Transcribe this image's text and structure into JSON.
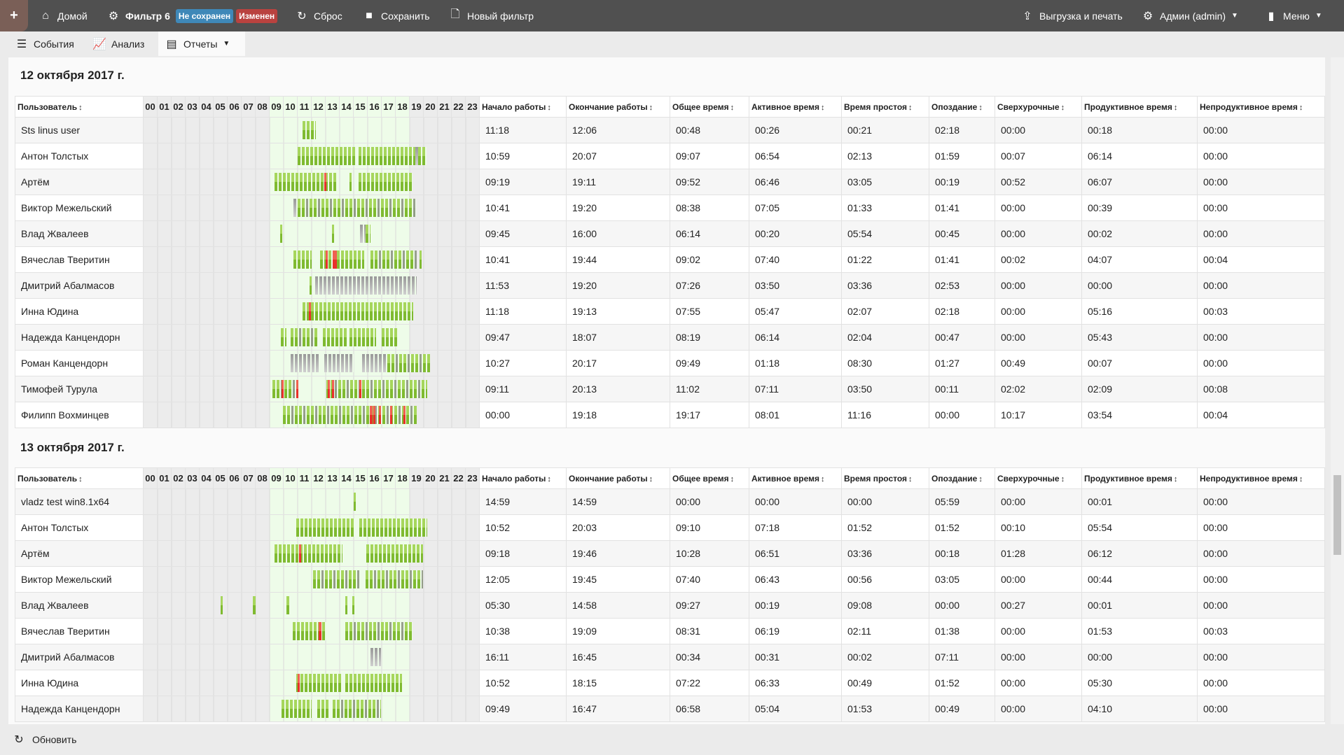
{
  "topbar": {
    "add": "+",
    "home": "Домой",
    "filter": "Фильтр 6",
    "badge_unsaved": "Не сохранен",
    "badge_changed": "Изменен",
    "reset": "Сброс",
    "save": "Сохранить",
    "new_filter": "Новый фильтр",
    "export": "Выгрузка и печать",
    "user": "Админ (admin)",
    "menu": "Меню",
    "colors": {
      "bar": "#505050",
      "unsaved": "#3f88b8",
      "changed": "#b9423f"
    }
  },
  "tabs": [
    {
      "label": "События"
    },
    {
      "label": "Анализ"
    },
    {
      "label": "Отчеты"
    }
  ],
  "columns": {
    "user": "Пользователь",
    "hours": [
      "00",
      "01",
      "02",
      "03",
      "04",
      "05",
      "06",
      "07",
      "08",
      "09",
      "10",
      "11",
      "12",
      "13",
      "14",
      "15",
      "16",
      "17",
      "18",
      "19",
      "20",
      "21",
      "22",
      "23"
    ],
    "metrics": [
      "Начало работы",
      "Окончание работы",
      "Общее время",
      "Активное время",
      "Время простоя",
      "Опоздание",
      "Сверхурочные",
      "Продуктивное время",
      "Непродуктивное время"
    ]
  },
  "days": [
    {
      "title": "12 октября 2017 г.",
      "rows": [
        {
          "user": "Sts linus user",
          "values": [
            "11:18",
            "12:06",
            "00:48",
            "00:26",
            "00:21",
            "02:18",
            "00:00",
            "00:18",
            "00:00"
          ],
          "activity": [
            [
              11.35,
              12.3,
              "g"
            ]
          ]
        },
        {
          "user": "Антон Толстых",
          "values": [
            "10:59",
            "20:07",
            "09:07",
            "06:54",
            "02:13",
            "01:59",
            "00:07",
            "06:14",
            "00:00"
          ],
          "activity": [
            [
              11.0,
              15.2,
              "g"
            ],
            [
              15.35,
              19.4,
              "g"
            ],
            [
              19.4,
              19.6,
              "x"
            ],
            [
              19.6,
              20.2,
              "g"
            ]
          ]
        },
        {
          "user": "Артём",
          "values": [
            "09:19",
            "19:11",
            "09:52",
            "06:46",
            "03:05",
            "00:19",
            "00:52",
            "06:07",
            "00:00"
          ],
          "activity": [
            [
              9.35,
              13.75,
              "g"
            ],
            [
              12.9,
              13.05,
              "r"
            ],
            [
              14.7,
              14.85,
              "g"
            ],
            [
              15.35,
              19.2,
              "g"
            ]
          ]
        },
        {
          "user": "Виктор Межельский",
          "values": [
            "10:41",
            "19:20",
            "08:38",
            "07:05",
            "01:33",
            "01:41",
            "00:00",
            "00:39",
            "00:00"
          ],
          "activity": [
            [
              10.7,
              11.0,
              "x"
            ],
            [
              11.0,
              19.45,
              "m"
            ]
          ]
        },
        {
          "user": "Влад Жвалеев",
          "values": [
            "09:45",
            "16:00",
            "06:14",
            "00:20",
            "05:54",
            "00:45",
            "00:00",
            "00:02",
            "00:00"
          ],
          "activity": [
            [
              9.75,
              9.9,
              "g"
            ],
            [
              13.45,
              13.6,
              "g"
            ],
            [
              15.45,
              15.85,
              "x"
            ],
            [
              15.85,
              16.2,
              "m"
            ]
          ]
        },
        {
          "user": "Вячеслав Тверитин",
          "values": [
            "10:41",
            "19:44",
            "09:02",
            "07:40",
            "01:22",
            "01:41",
            "00:02",
            "04:07",
            "00:04"
          ],
          "activity": [
            [
              10.7,
              12.0,
              "g"
            ],
            [
              12.6,
              15.75,
              "g"
            ],
            [
              13.0,
              13.15,
              "r"
            ],
            [
              13.5,
              13.8,
              "r"
            ],
            [
              16.2,
              19.5,
              "m"
            ],
            [
              19.7,
              19.85,
              "g"
            ]
          ]
        },
        {
          "user": "Дмитрий Абалмасов",
          "values": [
            "11:53",
            "19:20",
            "07:26",
            "03:50",
            "03:36",
            "02:53",
            "00:00",
            "00:00",
            "00:00"
          ],
          "activity": [
            [
              11.85,
              12.0,
              "g"
            ],
            [
              12.25,
              19.5,
              "x"
            ]
          ]
        },
        {
          "user": "Инна Юдина",
          "values": [
            "11:18",
            "19:13",
            "07:55",
            "05:47",
            "02:07",
            "02:18",
            "00:00",
            "05:16",
            "00:03"
          ],
          "activity": [
            [
              11.35,
              19.25,
              "g"
            ],
            [
              11.8,
              11.95,
              "r"
            ]
          ]
        },
        {
          "user": "Надежда Канцендорн",
          "values": [
            "09:47",
            "18:07",
            "08:19",
            "06:14",
            "02:04",
            "00:47",
            "00:00",
            "05:43",
            "00:00"
          ],
          "activity": [
            [
              9.8,
              10.2,
              "m"
            ],
            [
              10.5,
              12.4,
              "m"
            ],
            [
              12.8,
              14.6,
              "g"
            ],
            [
              14.7,
              16.6,
              "g"
            ],
            [
              17.0,
              18.2,
              "g"
            ]
          ]
        },
        {
          "user": "Роман Канцендорн",
          "values": [
            "10:27",
            "20:17",
            "09:49",
            "01:18",
            "08:30",
            "01:27",
            "00:49",
            "00:07",
            "00:00"
          ],
          "activity": [
            [
              10.5,
              12.5,
              "x"
            ],
            [
              12.9,
              15.0,
              "x"
            ],
            [
              15.6,
              17.4,
              "x"
            ],
            [
              17.4,
              20.45,
              "m"
            ]
          ]
        },
        {
          "user": "Тимофей Турула",
          "values": [
            "09:11",
            "20:13",
            "11:02",
            "07:11",
            "03:50",
            "00:11",
            "02:02",
            "02:09",
            "00:08"
          ],
          "activity": [
            [
              9.2,
              11.05,
              "m"
            ],
            [
              9.85,
              10.0,
              "r"
            ],
            [
              10.9,
              11.05,
              "r"
            ],
            [
              13.05,
              20.25,
              "m"
            ],
            [
              13.15,
              13.3,
              "r"
            ],
            [
              13.45,
              13.6,
              "r"
            ],
            [
              15.4,
              15.55,
              "r"
            ]
          ]
        },
        {
          "user": "Филипп Вохминцев",
          "values": [
            "00:00",
            "19:18",
            "19:17",
            "08:01",
            "11:16",
            "00:00",
            "10:17",
            "03:54",
            "00:04"
          ],
          "activity": [
            [
              9.95,
              19.5,
              "m"
            ],
            [
              16.15,
              16.35,
              "r"
            ],
            [
              16.4,
              16.55,
              "r"
            ],
            [
              16.8,
              16.95,
              "r"
            ],
            [
              17.6,
              17.75,
              "r"
            ],
            [
              18.55,
              18.7,
              "r"
            ]
          ]
        }
      ]
    },
    {
      "title": "13 октября 2017 г.",
      "rows": [
        {
          "user": "vladz test win8.1x64",
          "values": [
            "14:59",
            "14:59",
            "00:00",
            "00:00",
            "00:00",
            "05:59",
            "00:00",
            "00:01",
            "00:00"
          ],
          "activity": [
            [
              14.98,
              15.05,
              "g"
            ]
          ]
        },
        {
          "user": "Антон Толстых",
          "values": [
            "10:52",
            "20:03",
            "09:10",
            "07:18",
            "01:52",
            "01:52",
            "00:10",
            "05:54",
            "00:00"
          ],
          "activity": [
            [
              10.9,
              15.1,
              "g"
            ],
            [
              15.4,
              20.25,
              "g"
            ]
          ]
        },
        {
          "user": "Артём",
          "values": [
            "09:18",
            "19:46",
            "10:28",
            "06:51",
            "03:36",
            "00:18",
            "01:28",
            "06:12",
            "00:00"
          ],
          "activity": [
            [
              9.35,
              14.2,
              "g"
            ],
            [
              11.1,
              11.25,
              "r"
            ],
            [
              15.9,
              19.95,
              "g"
            ]
          ]
        },
        {
          "user": "Виктор Межельский",
          "values": [
            "12:05",
            "19:45",
            "07:40",
            "06:43",
            "00:56",
            "03:05",
            "00:00",
            "00:44",
            "00:00"
          ],
          "activity": [
            [
              12.1,
              15.4,
              "m"
            ],
            [
              15.85,
              19.95,
              "m"
            ]
          ]
        },
        {
          "user": "Влад Жвалеев",
          "values": [
            "05:30",
            "14:58",
            "09:27",
            "00:19",
            "09:08",
            "00:00",
            "00:27",
            "00:01",
            "00:00"
          ],
          "activity": [
            [
              5.5,
              5.65,
              "g"
            ],
            [
              7.8,
              8.0,
              "g"
            ],
            [
              10.2,
              10.45,
              "m"
            ],
            [
              14.4,
              14.55,
              "g"
            ],
            [
              14.9,
              15.0,
              "g"
            ]
          ]
        },
        {
          "user": "Вячеслав Тверитин",
          "values": [
            "10:38",
            "19:09",
            "08:31",
            "06:19",
            "02:11",
            "01:38",
            "00:00",
            "01:53",
            "00:03"
          ],
          "activity": [
            [
              10.65,
              13.05,
              "g"
            ],
            [
              12.5,
              12.7,
              "r"
            ],
            [
              14.4,
              19.2,
              "m"
            ]
          ]
        },
        {
          "user": "Дмитрий Абалмасов",
          "values": [
            "16:11",
            "16:45",
            "00:34",
            "00:31",
            "00:02",
            "07:11",
            "00:00",
            "00:00",
            "00:00"
          ],
          "activity": [
            [
              16.2,
              16.95,
              "x"
            ]
          ]
        },
        {
          "user": "Инна Юдина",
          "values": [
            "10:52",
            "18:15",
            "07:22",
            "06:33",
            "00:49",
            "01:52",
            "00:00",
            "05:30",
            "00:00"
          ],
          "activity": [
            [
              10.9,
              14.2,
              "g"
            ],
            [
              11.0,
              11.08,
              "r"
            ],
            [
              14.4,
              18.45,
              "g"
            ]
          ]
        },
        {
          "user": "Надежда Канцендорн",
          "values": [
            "09:49",
            "16:47",
            "06:58",
            "05:04",
            "01:53",
            "00:49",
            "00:00",
            "04:10",
            "00:00"
          ],
          "activity": [
            [
              9.85,
              12.0,
              "g"
            ],
            [
              12.4,
              13.3,
              "g"
            ],
            [
              13.5,
              16.95,
              "m"
            ]
          ]
        }
      ]
    }
  ],
  "footer": {
    "refresh": "Обновить"
  }
}
